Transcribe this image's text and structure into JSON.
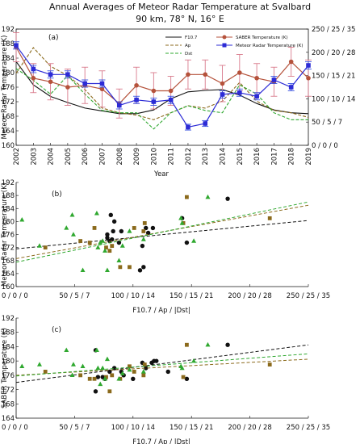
{
  "figure": {
    "title_line1": "Annual Averages of Meteor Radar Temperature at Svalbard",
    "title_line2": "90 km, 78° N, 16° E"
  },
  "colors": {
    "saber": "#b5523b",
    "radar": "#2c2bd6",
    "f107": "#111111",
    "ap": "#8b6a1c",
    "dst": "#2fa82f",
    "saber_err": "#d97a8c",
    "radar_err": "#3a53e0"
  },
  "chart_data": [
    {
      "id": "a",
      "type": "line",
      "panel_label": "(a)",
      "xlabel": "Year",
      "ylabel": "Meteor Radar Temperature (K)",
      "ylim": [
        160,
        192
      ],
      "y_ticks": [
        "160",
        "164",
        "168",
        "172",
        "176",
        "180",
        "184",
        "188",
        "192"
      ],
      "right_ylim": [
        0,
        250
      ],
      "right_ticks": [
        "0 / 0 / 0",
        "50 / 5 / 7",
        "100 / 10 / 14",
        "150 / 15 / 21",
        "200 / 20 / 28",
        "250 / 25 / 35"
      ],
      "x": [
        2002,
        2003,
        2004,
        2005,
        2006,
        2007,
        2008,
        2009,
        2010,
        2011,
        2012,
        2013,
        2014,
        2015,
        2016,
        2017,
        2018,
        2019
      ],
      "legend": [
        "F10.7",
        "Ap",
        "Dst",
        "SABER Temperature (K)",
        "Meteor Radar Temperature (K)"
      ],
      "series": [
        {
          "name": "SABER Temperature (K)",
          "axis": "left",
          "values": [
            187.0,
            178.5,
            177.5,
            176.0,
            176.5,
            175.5,
            171.5,
            176.5,
            175.0,
            175.0,
            179.5,
            179.5,
            177.0,
            180.0,
            178.5,
            177.5,
            183.0,
            178.5
          ],
          "err": [
            4,
            4,
            5,
            5,
            5,
            5,
            4,
            5,
            5,
            4,
            4,
            4,
            5,
            5,
            4,
            4,
            4,
            5
          ]
        },
        {
          "name": "Meteor Radar Temperature (K)",
          "axis": "left",
          "values": [
            187.5,
            181.0,
            179.5,
            179.5,
            177.0,
            177.0,
            171.0,
            172.5,
            172.0,
            172.5,
            165.0,
            166.0,
            174.0,
            174.5,
            173.5,
            178.0,
            176.0,
            182.0
          ],
          "err": [
            1,
            1,
            1,
            1,
            1,
            1,
            1,
            1,
            1,
            1,
            0.8,
            0.8,
            1,
            1,
            1,
            1,
            1,
            1
          ]
        },
        {
          "name": "F10.7",
          "axis": "right",
          "values": [
            180,
            130,
            105,
            92,
            80,
            74,
            68,
            68,
            76,
            100,
            115,
            118,
            120,
            108,
            90,
            76,
            70,
            68
          ]
        },
        {
          "name": "Ap",
          "axis": "right",
          "values": [
            155,
            210,
            170,
            150,
            120,
            80,
            70,
            65,
            55,
            70,
            85,
            80,
            95,
            135,
            95,
            75,
            70,
            60
          ]
        },
        {
          "name": "Dst",
          "axis": "right",
          "values": [
            165,
            140,
            110,
            150,
            110,
            75,
            70,
            70,
            35,
            70,
            85,
            75,
            70,
            130,
            110,
            70,
            55,
            55
          ]
        }
      ]
    },
    {
      "id": "b",
      "type": "scatter",
      "panel_label": "(b)",
      "xlabel": "F10.7 / Ap / |Dst|",
      "ylabel": "Meteor Radar Temperature (K)",
      "xlim": [
        0,
        250
      ],
      "x_ticks": [
        "0 / 0 / 0",
        "50 / 5 / 7",
        "100 / 10 / 14",
        "150 / 15 / 21",
        "200 / 20 / 28",
        "250 / 25 / 35"
      ],
      "ylim": [
        160,
        192
      ],
      "y_ticks": [
        "160",
        "164",
        "168",
        "172",
        "176",
        "180",
        "184",
        "188",
        "192"
      ],
      "series": [
        {
          "name": "F10.7",
          "marker": "circle",
          "points": [
            [
              181,
              187.0
            ],
            [
              142,
              181.0
            ],
            [
              111,
              178.0
            ],
            [
              84,
              180.0
            ],
            [
              81,
              182.0
            ],
            [
              78,
              176.0
            ],
            [
              80,
              174.0
            ],
            [
              82,
              174.5
            ],
            [
              83,
              177.0
            ],
            [
              90,
              177.0
            ],
            [
              88,
              173.5
            ],
            [
              78,
              175.0
            ],
            [
              108,
              172.5
            ],
            [
              106,
              165.0
            ],
            [
              109,
              166.0
            ],
            [
              146,
              173.5
            ],
            [
              117,
              178.0
            ],
            [
              113,
              176.5
            ]
          ],
          "fit": [
            [
              0,
              171.6
            ],
            [
              250,
              180.3
            ]
          ]
        },
        {
          "name": "Ap",
          "marker": "square",
          "points": [
            [
              146,
              187.5
            ],
            [
              217,
              181.0
            ],
            [
              143,
              179.5
            ],
            [
              109,
              177.0
            ],
            [
              101,
              178.0
            ],
            [
              110,
              179.5
            ],
            [
              77,
              172.0
            ],
            [
              82,
              172.5
            ],
            [
              80,
              171.0
            ],
            [
              67,
              178.0
            ],
            [
              63,
              173.5
            ],
            [
              89,
              166.0
            ],
            [
              97,
              166.0
            ],
            [
              55,
              174.0
            ],
            [
              25,
              172.0
            ]
          ],
          "fit": [
            [
              0,
              168.6
            ],
            [
              250,
              185.0
            ]
          ]
        },
        {
          "name": "Dst",
          "marker": "triangle",
          "points": [
            [
              164,
              187.5
            ],
            [
              141,
              181.0
            ],
            [
              69,
              182.5
            ],
            [
              142,
              179.5
            ],
            [
              152,
              174.0
            ],
            [
              97,
              177.0
            ],
            [
              76,
              171.0
            ],
            [
              91,
              172.5
            ],
            [
              70,
              172.0
            ],
            [
              88,
              168.0
            ],
            [
              57,
              165.0
            ],
            [
              78,
              165.0
            ],
            [
              74,
              174.0
            ],
            [
              109,
              174.5
            ],
            [
              72,
              173.5
            ],
            [
              43,
              178.0
            ],
            [
              49,
              176.0
            ],
            [
              48,
              182.0
            ],
            [
              20,
              172.5
            ],
            [
              5,
              180.5
            ]
          ],
          "fit": [
            [
              0,
              167.5
            ],
            [
              250,
              186.0
            ]
          ]
        }
      ]
    },
    {
      "id": "c",
      "type": "scatter",
      "panel_label": "(c)",
      "xlabel": "F10.7 / Ap / |Dst|",
      "ylabel": "SABER Temperature (K)",
      "xlim": [
        0,
        250
      ],
      "x_ticks": [
        "0 / 0 / 0",
        "50 / 5 / 7",
        "100 / 10 / 14",
        "150 / 15 / 21",
        "200 / 20 / 28",
        "250 / 25 / 35"
      ],
      "ylim": [
        164,
        192
      ],
      "y_ticks": [
        "164",
        "168",
        "172",
        "176",
        "180",
        "184",
        "188",
        "192"
      ],
      "series": [
        {
          "name": "F10.7",
          "marker": "circle",
          "points": [
            [
              181,
              184.5
            ],
            [
              68,
              183.0
            ],
            [
              111,
              178.0
            ],
            [
              116,
              179.5
            ],
            [
              118,
              180.0
            ],
            [
              120,
              180.0
            ],
            [
              108,
              179.5
            ],
            [
              90,
              177.0
            ],
            [
              80,
              177.0
            ],
            [
              76,
              175.0
            ],
            [
              74,
              175.5
            ],
            [
              70,
              175.5
            ],
            [
              68,
              171.5
            ],
            [
              100,
              175.0
            ],
            [
              92,
              176.0
            ],
            [
              84,
              178.0
            ],
            [
              130,
              177.0
            ],
            [
              146,
              175.0
            ]
          ],
          "fit": [
            [
              0,
              174.0
            ],
            [
              250,
              184.5
            ]
          ]
        },
        {
          "name": "Ap",
          "marker": "square",
          "points": [
            [
              146,
              184.5
            ],
            [
              217,
              179.0
            ],
            [
              143,
              175.5
            ],
            [
              109,
              176.0
            ],
            [
              101,
              177.0
            ],
            [
              110,
              179.0
            ],
            [
              77,
              175.5
            ],
            [
              82,
              176.0
            ],
            [
              80,
              171.5
            ],
            [
              67,
              175.0
            ],
            [
              63,
              175.0
            ],
            [
              89,
              175.0
            ],
            [
              97,
              178.5
            ],
            [
              55,
              176.0
            ],
            [
              25,
              177.0
            ]
          ],
          "fit": [
            [
              0,
              176.0
            ],
            [
              250,
              180.5
            ]
          ]
        },
        {
          "name": "Dst",
          "marker": "triangle",
          "points": [
            [
              164,
              184.5
            ],
            [
              141,
              178.5
            ],
            [
              69,
              183.0
            ],
            [
              142,
              178.0
            ],
            [
              152,
              180.0
            ],
            [
              97,
              177.5
            ],
            [
              76,
              175.0
            ],
            [
              91,
              176.5
            ],
            [
              70,
              178.0
            ],
            [
              88,
              175.0
            ],
            [
              57,
              178.5
            ],
            [
              78,
              180.5
            ],
            [
              74,
              178.0
            ],
            [
              109,
              177.0
            ],
            [
              72,
              173.5
            ],
            [
              43,
              183.0
            ],
            [
              49,
              179.0
            ],
            [
              48,
              176.0
            ],
            [
              20,
              179.0
            ],
            [
              5,
              178.5
            ]
          ],
          "fit": [
            [
              0,
              175.8
            ],
            [
              250,
              182.0
            ]
          ]
        }
      ]
    }
  ]
}
